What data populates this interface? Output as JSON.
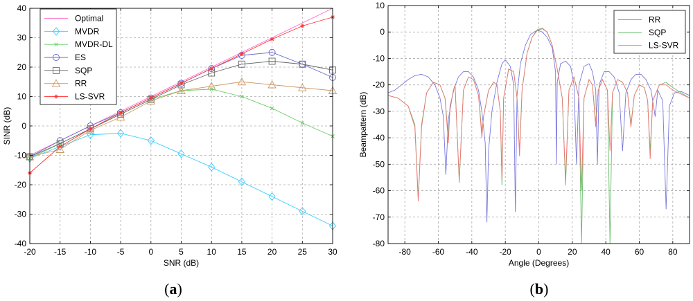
{
  "chart_data": [
    {
      "type": "line",
      "panel_label": "a",
      "xlabel": "SNR (dB)",
      "ylabel": "SINR (dB)",
      "xlim": [
        -20,
        30
      ],
      "ylim": [
        -40,
        40
      ],
      "xticks": [
        -20,
        -15,
        -10,
        -5,
        0,
        5,
        10,
        15,
        20,
        25,
        30
      ],
      "yticks": [
        -40,
        -30,
        -20,
        -10,
        0,
        10,
        20,
        30,
        40
      ],
      "grid": true,
      "legend_position": "top-left",
      "x": [
        -20,
        -15,
        -10,
        -5,
        0,
        5,
        10,
        15,
        20,
        25,
        30
      ],
      "series": [
        {
          "name": "Optimal",
          "color": "#ff66cc",
          "marker": "none",
          "values": [
            -10,
            -5,
            0,
            5,
            10,
            15,
            20,
            25,
            30,
            35,
            40
          ]
        },
        {
          "name": "MVDR",
          "color": "#33ccff",
          "marker": "diamond",
          "values": [
            -11,
            -7,
            -3,
            -2.5,
            -5,
            -9.5,
            -14,
            -19,
            -24,
            -29,
            -34
          ]
        },
        {
          "name": "MVDR-DL",
          "color": "#66cc66",
          "marker": "x",
          "values": [
            -11,
            -6,
            -1,
            4,
            9,
            12,
            12.5,
            10,
            6,
            1,
            -3.5
          ]
        },
        {
          "name": "ES",
          "color": "#6666cc",
          "marker": "circle",
          "values": [
            -10.5,
            -5,
            0,
            4.5,
            9.5,
            14.5,
            19.5,
            24,
            25,
            21,
            16.5
          ]
        },
        {
          "name": "SQP",
          "color": "#666666",
          "marker": "square",
          "values": [
            -10.5,
            -6,
            -1,
            4,
            9,
            14,
            18,
            21,
            22,
            21,
            19
          ]
        },
        {
          "name": "RR",
          "color": "#cc9966",
          "marker": "triangle",
          "values": [
            -10.5,
            -8,
            -1.5,
            3,
            8.5,
            12,
            13.5,
            15,
            14,
            13,
            12
          ]
        },
        {
          "name": "LS-SVR",
          "color": "#ff3333",
          "marker": "star",
          "values": [
            -16,
            -7,
            -1,
            4.5,
            9.5,
            14.5,
            19.5,
            24.5,
            29.5,
            34,
            37
          ]
        }
      ]
    },
    {
      "type": "line",
      "panel_label": "b",
      "xlabel": "Angle (Degrees)",
      "ylabel": "Beampattern (dB)",
      "xlim": [
        -90,
        90
      ],
      "ylim": [
        -80,
        10
      ],
      "xticks": [
        -80,
        -60,
        -40,
        -20,
        0,
        20,
        40,
        60,
        80
      ],
      "yticks": [
        -80,
        -70,
        -60,
        -50,
        -40,
        -30,
        -20,
        -10,
        0,
        10
      ],
      "grid": true,
      "legend_position": "top-right",
      "series": [
        {
          "name": "RR",
          "color": "#7777dd",
          "points": [
            [
              -90,
              -23
            ],
            [
              -86,
              -22
            ],
            [
              -82,
              -20
            ],
            [
              -78,
              -18
            ],
            [
              -74,
              -16.5
            ],
            [
              -70,
              -16
            ],
            [
              -66,
              -17
            ],
            [
              -62,
              -20
            ],
            [
              -59,
              -25
            ],
            [
              -57,
              -32
            ],
            [
              -55.5,
              -54
            ],
            [
              -54,
              -33
            ],
            [
              -51,
              -22
            ],
            [
              -48,
              -17
            ],
            [
              -45,
              -15
            ],
            [
              -42,
              -15
            ],
            [
              -39,
              -17
            ],
            [
              -36,
              -22
            ],
            [
              -34,
              -30
            ],
            [
              -32,
              -42
            ],
            [
              -31,
              -72
            ],
            [
              -30,
              -45
            ],
            [
              -28,
              -30
            ],
            [
              -25,
              -19
            ],
            [
              -22,
              -12
            ],
            [
              -20,
              -10.5
            ],
            [
              -17,
              -13
            ],
            [
              -15,
              -20
            ],
            [
              -14,
              -68
            ],
            [
              -13,
              -24
            ],
            [
              -11,
              -12
            ],
            [
              -8,
              -5
            ],
            [
              -5,
              -1
            ],
            [
              -2,
              0.3
            ],
            [
              0,
              0.5
            ],
            [
              2,
              0
            ],
            [
              5,
              -2
            ],
            [
              8,
              -6
            ],
            [
              10,
              -15
            ],
            [
              10.5,
              -50
            ],
            [
              11,
              -19
            ],
            [
              13,
              -12
            ],
            [
              16,
              -11
            ],
            [
              19,
              -13
            ],
            [
              21,
              -20
            ],
            [
              22.5,
              -50
            ],
            [
              24,
              -20
            ],
            [
              27,
              -13
            ],
            [
              30,
              -12
            ],
            [
              32,
              -15
            ],
            [
              34,
              -22
            ],
            [
              35,
              -50
            ],
            [
              36,
              -20
            ],
            [
              39,
              -15
            ],
            [
              42,
              -15
            ],
            [
              45,
              -17
            ],
            [
              48,
              -23
            ],
            [
              50,
              -45
            ],
            [
              52,
              -23
            ],
            [
              55,
              -18
            ],
            [
              58,
              -16
            ],
            [
              61,
              -16
            ],
            [
              64,
              -18
            ],
            [
              67,
              -22
            ],
            [
              69.5,
              -32
            ],
            [
              71,
              -22
            ],
            [
              74,
              -26
            ],
            [
              76,
              -67
            ],
            [
              78,
              -28
            ],
            [
              81,
              -23
            ],
            [
              85,
              -22.5
            ],
            [
              90,
              -24
            ]
          ]
        },
        {
          "name": "SQP",
          "color": "#66bb66",
          "points": [
            [
              -90,
              -24
            ],
            [
              -84,
              -25
            ],
            [
              -78,
              -28
            ],
            [
              -74,
              -35
            ],
            [
              -72,
              -63
            ],
            [
              -70,
              -35
            ],
            [
              -67,
              -23
            ],
            [
              -63,
              -19
            ],
            [
              -59,
              -20
            ],
            [
              -56,
              -25
            ],
            [
              -54,
              -40
            ],
            [
              -53,
              -28
            ],
            [
              -50,
              -20
            ],
            [
              -47.5,
              -57
            ],
            [
              -45,
              -22
            ],
            [
              -42,
              -17
            ],
            [
              -39,
              -18
            ],
            [
              -36,
              -24
            ],
            [
              -34,
              -38
            ],
            [
              -33,
              -32
            ],
            [
              -30,
              -22
            ],
            [
              -27,
              -19
            ],
            [
              -25,
              -20
            ],
            [
              -23,
              -30
            ],
            [
              -22,
              -58
            ],
            [
              -21,
              -25
            ],
            [
              -18,
              -14
            ],
            [
              -15,
              -15
            ],
            [
              -13,
              -25
            ],
            [
              -11.5,
              -45
            ],
            [
              -10,
              -22
            ],
            [
              -7,
              -8
            ],
            [
              -4,
              -2
            ],
            [
              -1,
              0.8
            ],
            [
              2,
              1.5
            ],
            [
              5,
              0
            ],
            [
              8,
              -5
            ],
            [
              11,
              -14
            ],
            [
              14,
              -25
            ],
            [
              16,
              -58
            ],
            [
              18,
              -22
            ],
            [
              21,
              -17
            ],
            [
              24,
              -25
            ],
            [
              25.5,
              -80
            ],
            [
              27,
              -25
            ],
            [
              30,
              -18
            ],
            [
              32,
              -20
            ],
            [
              34,
              -34
            ],
            [
              35.5,
              -22
            ],
            [
              38,
              -18
            ],
            [
              41,
              -22
            ],
            [
              42.5,
              -80
            ],
            [
              44,
              -23
            ],
            [
              47,
              -18
            ],
            [
              50,
              -19
            ],
            [
              53,
              -23
            ],
            [
              55,
              -35
            ],
            [
              57,
              -24
            ],
            [
              60,
              -20
            ],
            [
              63,
              -21
            ],
            [
              65,
              -26
            ],
            [
              66.5,
              -45
            ],
            [
              68,
              -26
            ],
            [
              72,
              -20
            ],
            [
              76,
              -19
            ],
            [
              80,
              -21
            ],
            [
              85,
              -23
            ],
            [
              90,
              -25
            ]
          ]
        },
        {
          "name": "LS-SVR",
          "color": "#ee7777",
          "points": [
            [
              -90,
              -24
            ],
            [
              -84,
              -25
            ],
            [
              -78,
              -28
            ],
            [
              -74,
              -36
            ],
            [
              -72,
              -64
            ],
            [
              -70,
              -36
            ],
            [
              -67,
              -23
            ],
            [
              -63,
              -19
            ],
            [
              -59,
              -20
            ],
            [
              -56,
              -25
            ],
            [
              -54,
              -42
            ],
            [
              -53,
              -28
            ],
            [
              -50,
              -20
            ],
            [
              -47.5,
              -56
            ],
            [
              -45,
              -22
            ],
            [
              -42,
              -17
            ],
            [
              -39,
              -18
            ],
            [
              -36,
              -24
            ],
            [
              -34,
              -40
            ],
            [
              -33,
              -32
            ],
            [
              -30,
              -22
            ],
            [
              -27,
              -19
            ],
            [
              -25,
              -20
            ],
            [
              -23,
              -30
            ],
            [
              -22,
              -55
            ],
            [
              -21,
              -25
            ],
            [
              -18,
              -14
            ],
            [
              -15,
              -15
            ],
            [
              -13,
              -25
            ],
            [
              -11.5,
              -47
            ],
            [
              -10,
              -22
            ],
            [
              -7,
              -8
            ],
            [
              -4,
              -2
            ],
            [
              -1,
              0.5
            ],
            [
              2,
              1.2
            ],
            [
              5,
              0
            ],
            [
              8,
              -5
            ],
            [
              11,
              -14
            ],
            [
              14,
              -25
            ],
            [
              16,
              -56
            ],
            [
              18,
              -22
            ],
            [
              21,
              -17
            ],
            [
              24,
              -25
            ],
            [
              25.5,
              -60
            ],
            [
              27,
              -25
            ],
            [
              30,
              -18
            ],
            [
              32,
              -20
            ],
            [
              34,
              -36
            ],
            [
              35.5,
              -22
            ],
            [
              38,
              -18
            ],
            [
              41,
              -22
            ],
            [
              42.5,
              -45
            ],
            [
              44,
              -23
            ],
            [
              47,
              -18
            ],
            [
              50,
              -19
            ],
            [
              53,
              -23
            ],
            [
              55,
              -36
            ],
            [
              57,
              -24
            ],
            [
              60,
              -20
            ],
            [
              63,
              -21
            ],
            [
              65,
              -26
            ],
            [
              66.5,
              -48
            ],
            [
              68,
              -26
            ],
            [
              72,
              -20
            ],
            [
              76,
              -20
            ],
            [
              80,
              -22
            ],
            [
              85,
              -23.5
            ],
            [
              90,
              -25
            ]
          ]
        }
      ]
    }
  ]
}
